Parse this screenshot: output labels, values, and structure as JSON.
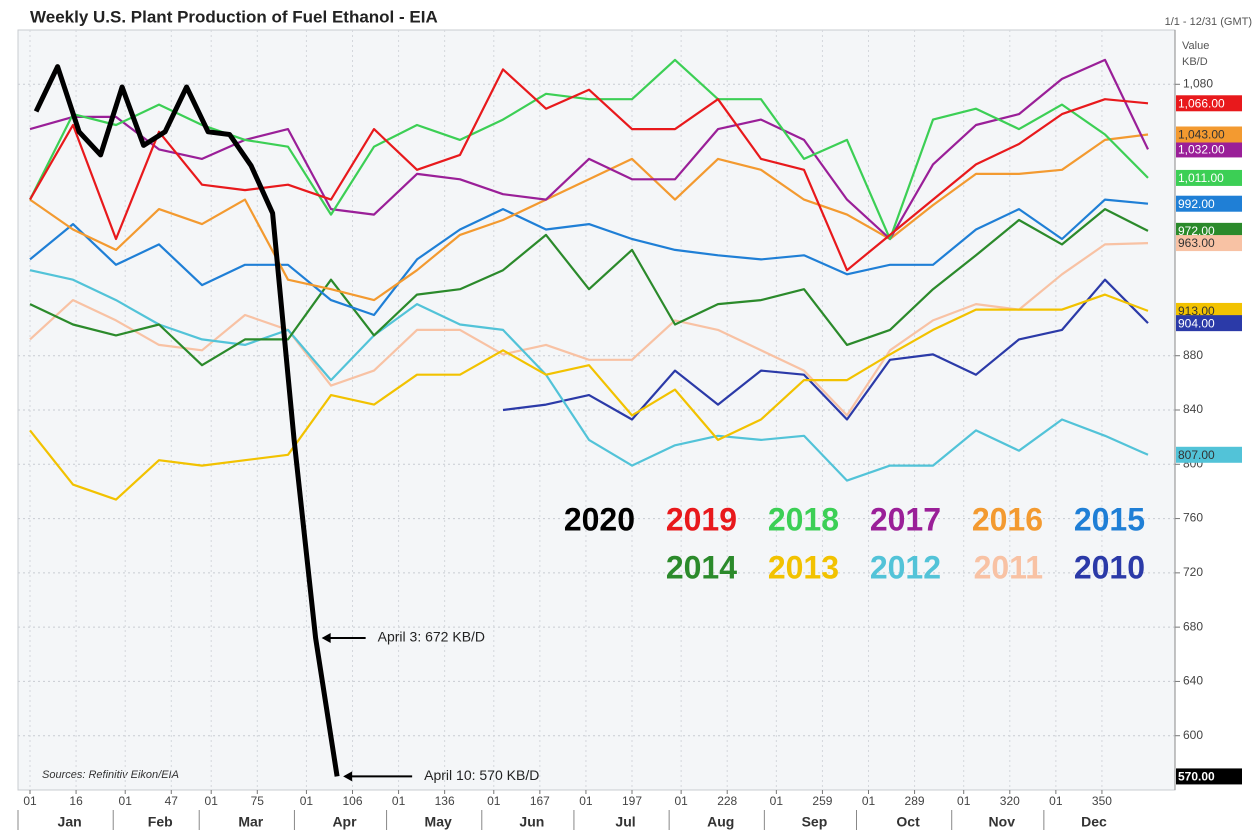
{
  "chart_data": {
    "type": "line",
    "title": "Weekly U.S. Plant Production of Fuel Ethanol - EIA",
    "date_range": "1/1 - 12/31 (GMT)",
    "y_axis_label": "Value",
    "y_axis_unit": "KB/D",
    "source": "Sources: Refinitiv Eikon/EIA",
    "annotations": [
      "April 3: 672 KB/D",
      "April 10: 570 KB/D"
    ],
    "x": [
      1,
      15,
      29,
      43,
      57,
      71,
      85,
      99,
      113,
      127,
      141,
      155,
      169,
      183,
      197,
      211,
      225,
      239,
      253,
      267,
      281,
      295,
      309,
      323,
      337,
      351,
      365
    ],
    "xlim": [
      1,
      365
    ],
    "xticks": [
      {
        "value": 1,
        "label": "01"
      },
      16,
      {
        "value": 32,
        "label": "01"
      },
      47,
      {
        "value": 60,
        "label": "01"
      },
      75,
      {
        "value": 91,
        "label": "01"
      },
      106,
      {
        "value": 121,
        "label": "01"
      },
      136,
      {
        "value": 152,
        "label": "01"
      },
      167,
      {
        "value": 182,
        "label": "01"
      },
      197,
      {
        "value": 213,
        "label": "01"
      },
      228,
      {
        "value": 244,
        "label": "01"
      },
      259,
      {
        "value": 274,
        "label": "01"
      },
      289,
      {
        "value": 305,
        "label": "01"
      },
      320,
      {
        "value": 335,
        "label": "01"
      },
      350
    ],
    "months": [
      "Jan",
      "Feb",
      "Mar",
      "Apr",
      "May",
      "Jun",
      "Jul",
      "Aug",
      "Sep",
      "Oct",
      "Nov",
      "Dec"
    ],
    "ylim": [
      560,
      1120
    ],
    "yticks": [
      600,
      640,
      680,
      720,
      760,
      800,
      840,
      880,
      {
        "value": 1080,
        "label": "1,080"
      }
    ],
    "grid": true,
    "series": [
      {
        "name": "2020",
        "color": "#000000",
        "x": [
          3,
          10,
          17,
          24,
          31,
          38,
          45,
          52,
          59,
          66,
          73,
          80,
          87,
          94,
          101
        ],
        "values": [
          1060,
          1093,
          1045,
          1028,
          1078,
          1035,
          1045,
          1078,
          1045,
          1043,
          1020,
          985,
          818,
          672,
          570
        ],
        "value_labels": [
          null,
          null,
          null,
          null,
          null,
          null,
          null,
          null,
          null,
          null,
          null,
          null,
          null,
          null,
          "570.00"
        ]
      },
      {
        "name": "2019",
        "color": "#e8191c",
        "values": [
          995,
          1050,
          966,
          1045,
          1006,
          1002,
          1006,
          995,
          1047,
          1017,
          1028,
          1091,
          1062,
          1076,
          1047,
          1047,
          1069,
          1025,
          1017,
          943,
          969,
          995,
          1021,
          1036,
          1058,
          1069,
          1066
        ],
        "value_labels": [
          null,
          null,
          null,
          null,
          null,
          null,
          null,
          null,
          null,
          null,
          null,
          null,
          null,
          null,
          null,
          null,
          null,
          null,
          null,
          null,
          null,
          null,
          null,
          null,
          null,
          null,
          "1,066.00"
        ]
      },
      {
        "name": "2018",
        "color": "#3ccf55",
        "values": [
          995,
          1058,
          1050,
          1065,
          1050,
          1039,
          1034,
          984,
          1034,
          1050,
          1039,
          1054,
          1073,
          1069,
          1069,
          1098,
          1069,
          1069,
          1025,
          1039,
          966,
          1054,
          1062,
          1047,
          1065,
          1043,
          1011
        ],
        "value_labels": [
          null,
          null,
          null,
          null,
          null,
          null,
          null,
          null,
          null,
          null,
          null,
          null,
          null,
          null,
          null,
          null,
          null,
          null,
          null,
          null,
          null,
          null,
          null,
          null,
          null,
          null,
          "1,011.00"
        ]
      },
      {
        "name": "2017",
        "color": "#9a1f98",
        "values": [
          1047,
          1056,
          1056,
          1032,
          1025,
          1039,
          1047,
          988,
          984,
          1014,
          1010,
          999,
          995,
          1025,
          1010,
          1010,
          1047,
          1054,
          1039,
          995,
          966,
          1021,
          1050,
          1058,
          1084,
          1098,
          1032
        ],
        "value_labels": [
          null,
          null,
          null,
          null,
          null,
          null,
          null,
          null,
          null,
          null,
          null,
          null,
          null,
          null,
          null,
          null,
          null,
          null,
          null,
          null,
          null,
          null,
          null,
          null,
          null,
          null,
          "1,032.00"
        ]
      },
      {
        "name": "2016",
        "color": "#f39a30",
        "values": [
          995,
          973,
          958,
          988,
          977,
          995,
          936,
          929,
          921,
          943,
          969,
          980,
          995,
          1010,
          1025,
          995,
          1025,
          1017,
          995,
          984,
          966,
          991,
          1014,
          1014,
          1017,
          1039,
          1043
        ],
        "value_labels": [
          null,
          null,
          null,
          null,
          null,
          null,
          null,
          null,
          null,
          null,
          null,
          null,
          null,
          null,
          null,
          null,
          null,
          null,
          null,
          null,
          null,
          null,
          null,
          null,
          null,
          null,
          "1,043.00"
        ]
      },
      {
        "name": "2015",
        "color": "#1f7fd6",
        "values": [
          951,
          977,
          947,
          962,
          932,
          947,
          947,
          921,
          910,
          951,
          973,
          988,
          973,
          977,
          966,
          958,
          954,
          951,
          954,
          940,
          947,
          947,
          973,
          988,
          966,
          995,
          992
        ],
        "value_labels": [
          null,
          null,
          null,
          null,
          null,
          null,
          null,
          null,
          null,
          null,
          null,
          null,
          null,
          null,
          null,
          null,
          null,
          null,
          null,
          null,
          null,
          null,
          null,
          null,
          null,
          null,
          "992.00"
        ]
      },
      {
        "name": "2014",
        "color": "#2b8a2b",
        "values": [
          918,
          903,
          895,
          903,
          873,
          892,
          892,
          936,
          895,
          925,
          929,
          943,
          969,
          929,
          958,
          903,
          918,
          921,
          929,
          888,
          899,
          929,
          954,
          980,
          962,
          988,
          972
        ],
        "value_labels": [
          null,
          null,
          null,
          null,
          null,
          null,
          null,
          null,
          null,
          null,
          null,
          null,
          null,
          null,
          null,
          null,
          null,
          null,
          null,
          null,
          null,
          null,
          null,
          null,
          null,
          null,
          "972.00"
        ]
      },
      {
        "name": "2013",
        "color": "#f2c200",
        "values": [
          825,
          785,
          774,
          803,
          799,
          803,
          807,
          851,
          844,
          866,
          866,
          884,
          866,
          873,
          836,
          855,
          818,
          833,
          862,
          862,
          881,
          899,
          914,
          914,
          914,
          925,
          913
        ],
        "value_labels": [
          null,
          null,
          null,
          null,
          null,
          null,
          null,
          null,
          null,
          null,
          null,
          null,
          null,
          null,
          null,
          null,
          null,
          null,
          null,
          null,
          null,
          null,
          null,
          null,
          null,
          null,
          "913.00"
        ]
      },
      {
        "name": "2012",
        "color": "#52c3d8",
        "values": [
          943,
          936,
          921,
          903,
          892,
          888,
          899,
          862,
          895,
          918,
          903,
          899,
          866,
          818,
          799,
          814,
          821,
          818,
          821,
          788,
          799,
          799,
          825,
          810,
          833,
          821,
          807
        ],
        "value_labels": [
          null,
          null,
          null,
          null,
          null,
          null,
          null,
          null,
          null,
          null,
          null,
          null,
          null,
          null,
          null,
          null,
          null,
          null,
          null,
          null,
          null,
          null,
          null,
          null,
          null,
          null,
          "807.00"
        ]
      },
      {
        "name": "2011",
        "color": "#f8c2a4",
        "values": [
          892,
          921,
          906,
          888,
          884,
          910,
          899,
          858,
          869,
          899,
          899,
          881,
          888,
          877,
          877,
          906,
          899,
          884,
          869,
          836,
          884,
          906,
          918,
          914,
          940,
          962,
          963
        ],
        "value_labels": [
          null,
          null,
          null,
          null,
          null,
          null,
          null,
          null,
          null,
          null,
          null,
          null,
          null,
          null,
          null,
          null,
          null,
          null,
          null,
          null,
          null,
          null,
          null,
          null,
          null,
          null,
          "963.00"
        ]
      },
      {
        "name": "2010",
        "color": "#2b3aa8",
        "values": [
          null,
          null,
          null,
          null,
          null,
          null,
          null,
          null,
          null,
          null,
          null,
          840,
          844,
          851,
          833,
          869,
          844,
          869,
          866,
          833,
          877,
          881,
          866,
          892,
          899,
          936,
          904
        ],
        "value_labels": [
          null,
          null,
          null,
          null,
          null,
          null,
          null,
          null,
          null,
          null,
          null,
          null,
          null,
          null,
          null,
          null,
          null,
          null,
          null,
          null,
          null,
          null,
          null,
          null,
          null,
          null,
          "904.00"
        ]
      }
    ]
  }
}
